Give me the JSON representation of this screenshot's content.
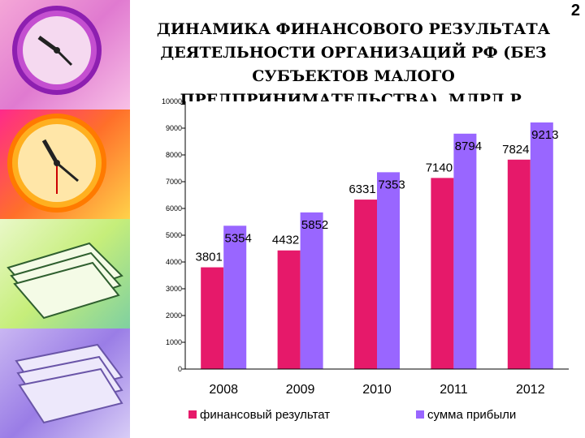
{
  "page_number": "2",
  "title": "ДИНАМИКА ФИНАНСОВОГО РЕЗУЛЬТАТА ДЕЯТЕЛЬНОСТИ ОРГАНИЗАЦИЙ РФ (БЕЗ СУБЪЕКТОВ МАЛОГО ПРЕДПРИНИМАТЕЛЬСТВА), МЛРД.Р.",
  "colors": {
    "series1": "#e6196a",
    "series2": "#9966ff",
    "plot_bg": "#ffffff"
  },
  "sidebar_images": [
    "purple-clock-icon",
    "orange-clock-icon",
    "papers-stack-icon",
    "books-stack-icon"
  ],
  "chart_data": {
    "type": "bar",
    "title": "",
    "xlabel": "",
    "ylabel": "",
    "categories": [
      "2008",
      "2009",
      "2010",
      "2011",
      "2012"
    ],
    "series": [
      {
        "name": "финансовый результат",
        "values": [
          3801,
          4432,
          6331,
          7140,
          7824
        ]
      },
      {
        "name": "сумма прибыли",
        "values": [
          5354,
          5852,
          7353,
          8794,
          9213
        ]
      }
    ],
    "ylim": [
      0,
      10000
    ],
    "yticks": [
      0,
      1000,
      2000,
      3000,
      4000,
      5000,
      6000,
      7000,
      8000,
      9000,
      10000
    ],
    "grid": false,
    "legend_position": "bottom"
  }
}
